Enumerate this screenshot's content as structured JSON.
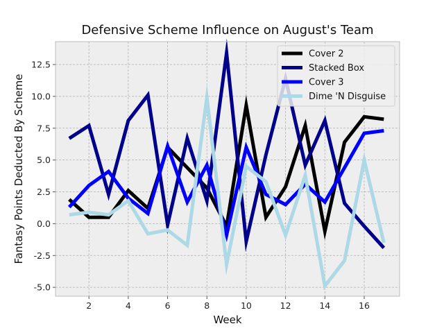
{
  "chart_data": {
    "type": "line",
    "title": "Defensive Scheme Influence on August's Team",
    "xlabel": "Week",
    "ylabel": "Fantasy Points Deducted By Scheme",
    "xlim": [
      0.3,
      17.8
    ],
    "ylim": [
      -5.7,
      14.3
    ],
    "xticks": [
      2,
      4,
      6,
      8,
      10,
      12,
      14,
      16
    ],
    "yticks": [
      -5.0,
      -2.5,
      0.0,
      2.5,
      5.0,
      7.5,
      10.0,
      12.5
    ],
    "grid": true,
    "legend_position": "top-right",
    "x": [
      1,
      2,
      3,
      4,
      5,
      6,
      7,
      8,
      9,
      10,
      11,
      12,
      13,
      14,
      15,
      16,
      17
    ],
    "series": [
      {
        "name": "Cover 2",
        "color": "#000000",
        "values": [
          1.9,
          0.5,
          0.5,
          2.6,
          1.2,
          6.0,
          4.4,
          2.8,
          -0.2,
          9.3,
          0.5,
          2.9,
          7.7,
          -0.6,
          6.4,
          8.4,
          8.2
        ]
      },
      {
        "name": "Stacked Box",
        "color": "#00008b",
        "values": [
          6.7,
          7.7,
          2.3,
          8.1,
          10.1,
          -0.1,
          6.7,
          1.8,
          13.4,
          -1.4,
          5.4,
          11.4,
          4.6,
          8.1,
          1.6,
          -0.2,
          -1.9
        ]
      },
      {
        "name": "Cover 3",
        "color": "#0000ff",
        "values": [
          1.3,
          3.0,
          4.1,
          2.0,
          0.8,
          6.1,
          1.7,
          4.6,
          -0.9,
          6.0,
          2.3,
          1.5,
          3.1,
          1.7,
          4.4,
          7.1,
          7.3
        ]
      },
      {
        "name": "Dime 'N Disguise",
        "color": "#add8e6",
        "values": [
          0.7,
          0.9,
          0.7,
          1.8,
          -0.8,
          -0.5,
          -1.7,
          9.9,
          -3.2,
          4.5,
          3.3,
          -0.9,
          3.8,
          -4.9,
          -2.9,
          5.0,
          -1.5
        ]
      }
    ]
  }
}
